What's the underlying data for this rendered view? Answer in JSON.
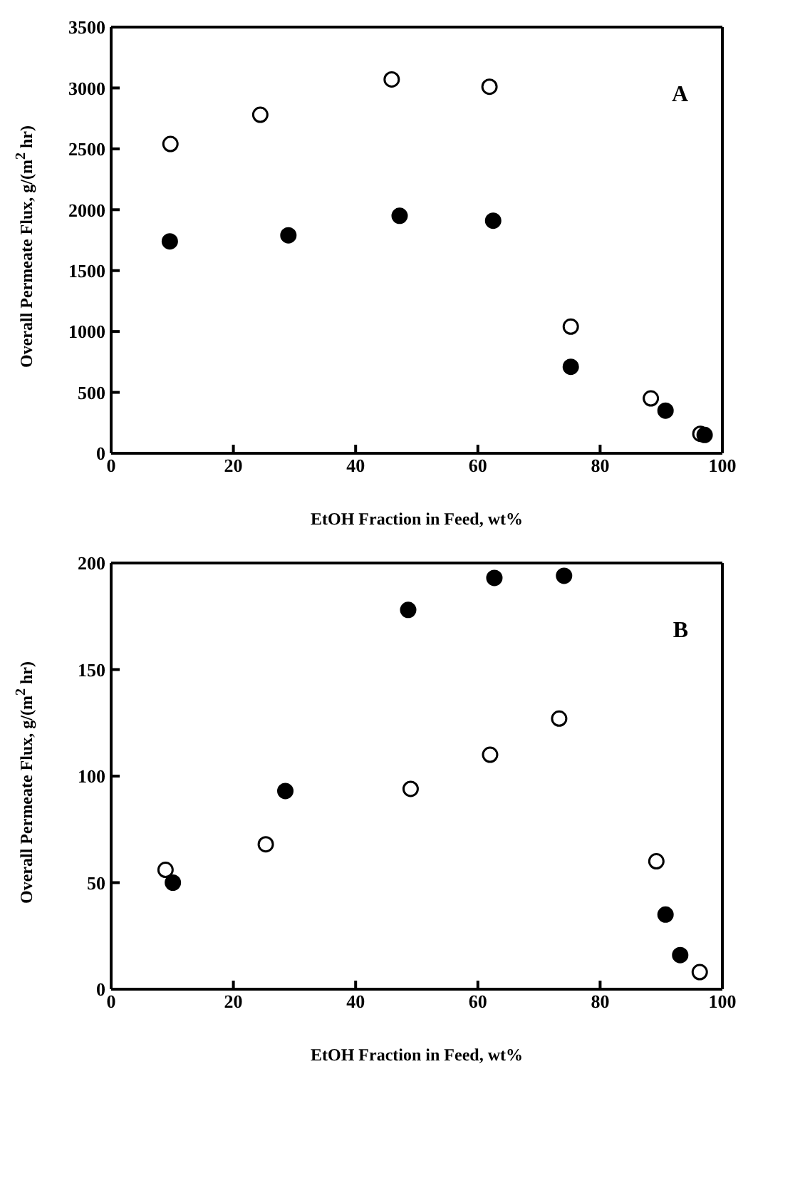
{
  "chart_data": [
    {
      "type": "scatter",
      "xlabel": "EtOH Fraction in Feed,  wt%",
      "ylabel": "Overall Permeate Flux,  g/(m$^{2}$ hr)",
      "annotations": [
        "A"
      ],
      "xlim": [
        0,
        100
      ],
      "xticks": [
        0,
        20,
        40,
        60,
        80,
        100
      ],
      "ylim": [
        0,
        3500
      ],
      "yticks": [
        0,
        500,
        1000,
        1500,
        2000,
        2500,
        3000,
        3500
      ],
      "grid": false,
      "legend": false,
      "marker": "circle",
      "series": [
        {
          "color": "#000000",
          "x": [
            9.7,
            24.4,
            45.9,
            61.9,
            75.2,
            88.3,
            96.4
          ],
          "values": [
            2540,
            2780,
            3070,
            3010,
            1040,
            450,
            160
          ]
        },
        {
          "color": "#000000",
          "x": [
            9.6,
            29.0,
            47.2,
            62.5,
            75.2,
            90.7,
            97.1
          ],
          "values": [
            1740,
            1790,
            1950,
            1910,
            710,
            350,
            150
          ]
        }
      ]
    },
    {
      "type": "scatter",
      "xlabel": "EtOH Fraction in Feed,  wt%",
      "ylabel": "Overall Permeate Flux,  g/(m$^{2}$ hr)",
      "annotations": [
        "B"
      ],
      "xlim": [
        0,
        100
      ],
      "xticks": [
        0,
        20,
        40,
        60,
        80,
        100
      ],
      "ylim": [
        0,
        200
      ],
      "yticks": [
        0,
        50,
        100,
        150,
        200
      ],
      "grid": false,
      "legend": false,
      "marker": "circle",
      "series": [
        {
          "color": "#000000",
          "x": [
            8.9,
            25.3,
            49.0,
            62.0,
            73.3,
            89.2,
            96.3
          ],
          "values": [
            56,
            68,
            94,
            110,
            127,
            60,
            8
          ]
        },
        {
          "color": "#000000",
          "x": [
            10.1,
            28.5,
            48.6,
            62.7,
            74.1,
            90.7,
            93.1
          ],
          "values": [
            50,
            93,
            178,
            193,
            194,
            35,
            16
          ]
        }
      ]
    }
  ]
}
